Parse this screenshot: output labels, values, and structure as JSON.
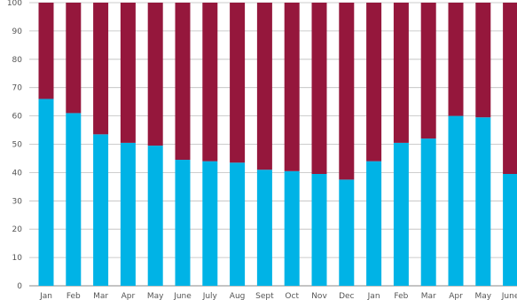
{
  "chart_data": {
    "type": "bar",
    "stacked": true,
    "categories": [
      "Jan",
      "Feb",
      "Mar",
      "Apr",
      "May",
      "June",
      "July",
      "Aug",
      "Sept",
      "Oct",
      "Nov",
      "Dec",
      "Jan",
      "Feb",
      "Mar",
      "Apr",
      "May",
      "June"
    ],
    "series": [
      {
        "values": [
          66,
          61,
          53.5,
          50.5,
          49.5,
          44.5,
          44,
          43.5,
          41,
          40.5,
          39.5,
          37.5,
          44,
          50.5,
          52,
          60,
          59.5,
          39.5
        ],
        "color": "#00b3e6"
      },
      {
        "values": [
          34,
          39,
          46.5,
          49.5,
          50.5,
          55.5,
          56,
          56.5,
          59,
          59.5,
          60.5,
          62.5,
          56,
          49.5,
          48,
          40,
          40.5,
          60.5
        ],
        "color": "#95173c"
      }
    ],
    "ylim": [
      0,
      100
    ],
    "yticks": [
      "0",
      "10",
      "20",
      "30",
      "40",
      "50",
      "60",
      "70",
      "80",
      "90",
      "100"
    ],
    "grid": true,
    "title": "",
    "xlabel": "",
    "ylabel": ""
  }
}
